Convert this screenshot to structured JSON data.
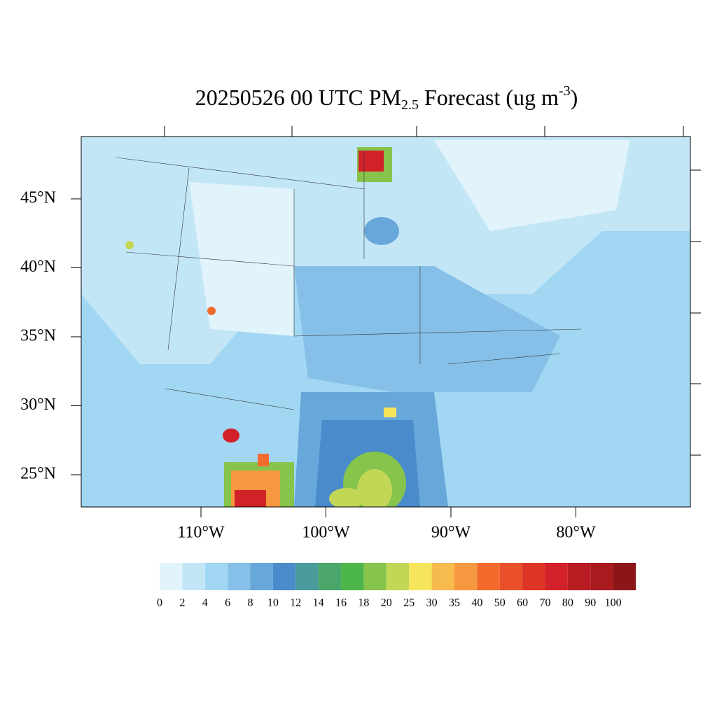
{
  "title": {
    "prefix": "20250526 00 UTC PM",
    "sub": "2.5",
    "middle": " Forecast (ug m",
    "sup": "-3",
    "suffix": ")"
  },
  "lat_ticks": [
    {
      "value": 45,
      "label": "45°N"
    },
    {
      "value": 40,
      "label": "40°N"
    },
    {
      "value": 35,
      "label": "35°N"
    },
    {
      "value": 30,
      "label": "30°N"
    },
    {
      "value": 25,
      "label": "25°N"
    }
  ],
  "lon_ticks": [
    {
      "value": -110,
      "label": "110°W"
    },
    {
      "value": -100,
      "label": "100°W"
    },
    {
      "value": -90,
      "label": "90°W"
    },
    {
      "value": -80,
      "label": "80°W"
    }
  ],
  "colorbar": {
    "levels": [
      0,
      2,
      4,
      6,
      8,
      10,
      12,
      14,
      16,
      18,
      20,
      25,
      30,
      35,
      40,
      50,
      60,
      70,
      80,
      90,
      100
    ],
    "colors": [
      "#e1f3fb",
      "#c3e6f7",
      "#a2d7f3",
      "#86c0e8",
      "#67a7da",
      "#4a8bcb",
      "#4a9c9c",
      "#4aa66a",
      "#4cb64a",
      "#86c44c",
      "#c3d757",
      "#f6e55a",
      "#f6bb4c",
      "#f5983f",
      "#f26b2d",
      "#e95029",
      "#dc3526",
      "#d32129",
      "#ba1c23",
      "#a91a1f",
      "#8c1518"
    ]
  }
}
